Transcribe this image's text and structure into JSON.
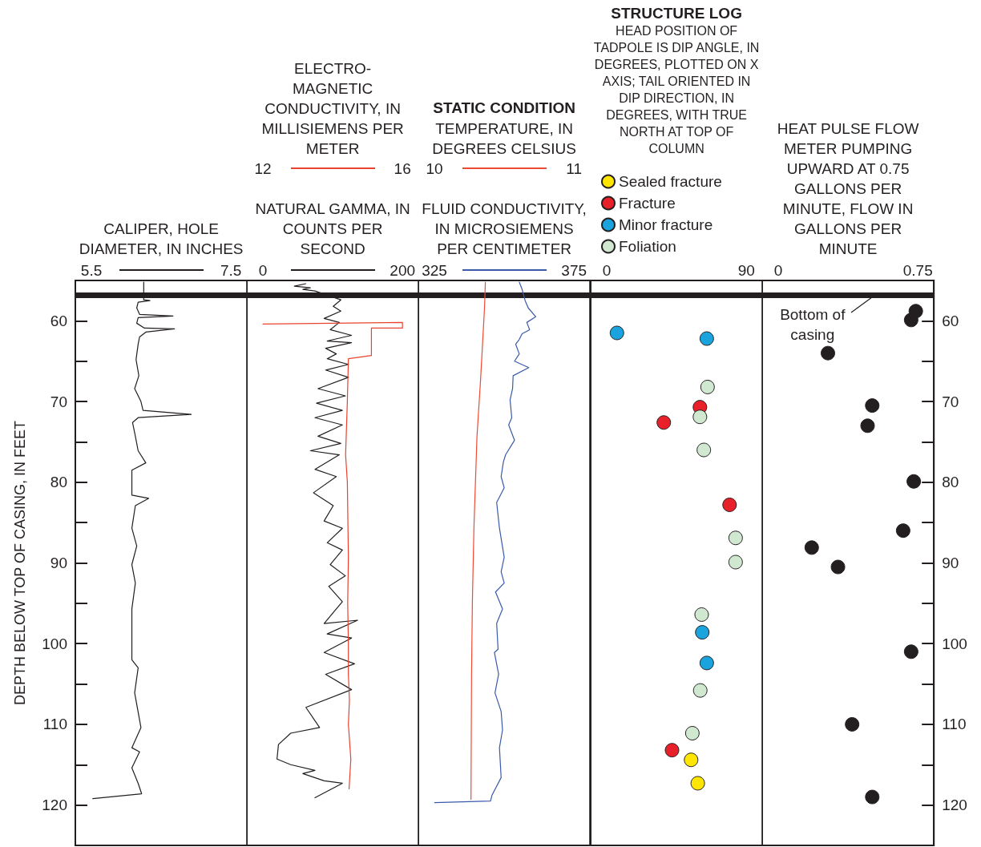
{
  "chart_data": [
    {
      "type": "line",
      "xlabel": "CALIPER, HOLE DIAMETER, IN INCHES",
      "ylabel": "DEPTH BELOW TOP OF CASING, IN FEET",
      "xlim": [
        5.27,
        7.73
      ],
      "xticks": [
        5.5,
        7.5
      ],
      "ylim": [
        125,
        55
      ],
      "yticks": [
        60,
        {
          "value": 65,
          "label": null
        },
        70,
        {
          "value": 75,
          "label": null
        },
        80,
        {
          "value": 85,
          "label": null
        },
        90,
        {
          "value": 95,
          "label": null
        },
        100,
        {
          "value": 105,
          "label": null
        },
        110,
        {
          "value": 115,
          "label": null
        },
        120
      ],
      "grid": false,
      "marker": "none",
      "ref_lines": [
        {
          "axis": "y",
          "value": 56.8,
          "color": "#231f20"
        }
      ],
      "series": [
        {
          "color": "#231f20",
          "x": [
            6.25,
            6.25,
            6.34,
            6.17,
            6.15,
            6.19,
            6.67,
            6.17,
            6.15,
            6.26,
            6.69,
            6.28,
            6.19,
            6.17,
            6.14,
            6.18,
            6.12,
            6.21,
            6.24,
            6.93,
            6.17,
            6.09,
            6.13,
            6.17,
            6.28,
            6.08,
            6.08,
            6.32,
            6.13,
            6.08,
            6.15,
            6.08,
            6.13,
            6.08,
            6.08,
            6.08,
            6.17,
            6.12,
            6.21,
            6.08,
            6.19,
            6.08,
            6.17,
            6.22,
            5.52
          ],
          "values": [
            55.2,
            57.4,
            57.5,
            57.7,
            58.4,
            59.2,
            59.4,
            59.6,
            60.3,
            60.9,
            61.0,
            61.4,
            62.0,
            62.9,
            64.8,
            66.8,
            68.4,
            70.0,
            71.1,
            71.6,
            72.0,
            72.6,
            74.3,
            76.1,
            77.6,
            78.5,
            81.6,
            82.0,
            82.9,
            85.7,
            87.9,
            90.2,
            92.5,
            95.7,
            99.3,
            102.0,
            103.0,
            106.1,
            110.4,
            112.9,
            113.4,
            115.4,
            117.3,
            118.6,
            119.2
          ]
        }
      ]
    },
    {
      "type": "line",
      "x2label": "ELECTRO-MAGNETIC CONDUCTIVITY, IN MILLISIEMENS PER METER",
      "xlabel": "NATURAL GAMMA, IN COUNTS PER SECOND",
      "xlim": [
        -23,
        223
      ],
      "xticks": [
        0,
        200
      ],
      "x2lim": [
        11.54,
        16.46
      ],
      "x2ticks": [
        12,
        16
      ],
      "ylim": [
        125,
        55
      ],
      "tick_labels": "x",
      "grid": false,
      "marker": "none",
      "ref_lines": [
        {
          "axis": "y",
          "value": 56.8,
          "color": "#231f20"
        }
      ],
      "series": [
        {
          "color": "#231f20",
          "x": [
            61.6,
            45.0,
            68.1,
            57.2,
            74.6,
            111.7,
            100.8,
            111.7,
            87.7,
            109.5,
            96.4,
            127.0,
            92.1,
            127.0,
            89.9,
            105.2,
            92.1,
            122.6,
            89.9,
            122.6,
            79.0,
            118.2,
            76.8,
            113.9,
            74.6,
            113.9,
            79.0,
            111.7,
            68.1,
            109.5,
            74.6,
            105.2,
            72.5,
            100.8,
            87.7,
            113.9,
            92.1,
            113.9,
            96.4,
            118.2,
            94.3,
            113.9,
            87.7,
            135.7,
            92.1,
            127.0,
            87.7,
            131.3,
            89.9,
            127.0,
            61.6,
            81.2,
            39.8,
            22.3,
            20.2,
            39.8,
            74.6,
            57.2,
            87.7,
            113.9,
            100.8,
            74.6
          ],
          "values": [
            55.4,
            55.7,
            55.9,
            56.1,
            56.3,
            57.4,
            58.2,
            58.8,
            59.7,
            60.2,
            61.1,
            61.8,
            62.5,
            62.7,
            63.4,
            64.1,
            64.7,
            65.4,
            66.1,
            67.0,
            68.4,
            69.3,
            70.2,
            71.1,
            72.0,
            72.9,
            74.3,
            75.2,
            76.1,
            76.6,
            78.4,
            79.3,
            81.3,
            82.9,
            84.8,
            85.7,
            87.5,
            88.4,
            90.2,
            91.6,
            92.9,
            94.8,
            97.5,
            97.1,
            98.8,
            99.3,
            101.1,
            102.5,
            103.8,
            105.7,
            107.9,
            110.4,
            111.1,
            112.5,
            114.3,
            115.0,
            115.7,
            116.1,
            117.0,
            117.3,
            117.9,
            119.1
          ]
        },
        {
          "color": "#e8432e",
          "axis": "x2",
          "x": [
            12.0,
            16.0,
            16.0,
            15.11,
            15.11,
            14.45,
            14.42,
            14.37,
            14.42,
            14.45,
            14.43,
            14.45,
            14.45,
            14.48,
            14.45,
            14.52,
            14.47
          ],
          "values": [
            60.4,
            60.2,
            60.9,
            60.9,
            64.3,
            64.7,
            70.0,
            76.6,
            80.0,
            89.3,
            95.0,
            100.0,
            103.8,
            107.0,
            110.0,
            114.3,
            118.0
          ]
        }
      ]
    },
    {
      "type": "line",
      "title": "STATIC CONDITION",
      "x2label": "TEMPERATURE, IN DEGREES CELSIUS",
      "xlabel": "FLUID CONDUCTIVITY, IN MICROSIEMENS PER CENTIMETER",
      "xlim": [
        319.26,
        380.74
      ],
      "xticks": [
        325,
        375
      ],
      "x2lim": [
        9.885,
        11.115
      ],
      "x2ticks": [
        10,
        11
      ],
      "ylim": [
        125,
        55
      ],
      "tick_labels": "x",
      "grid": false,
      "marker": "none",
      "ref_lines": [
        {
          "axis": "y",
          "value": 56.8,
          "color": "#231f20"
        }
      ],
      "series": [
        {
          "color": "#ee4b35",
          "axis": "x2",
          "x": [
            10.365,
            10.359,
            10.33,
            10.305,
            10.283,
            10.272,
            10.266,
            10.262
          ],
          "values": [
            55.2,
            58.4,
            67.5,
            74.3,
            85.7,
            94.8,
            103.8,
            119.3
          ]
        },
        {
          "color": "#3a5ba9",
          "x": [
            355.4,
            356.4,
            357.5,
            358.6,
            361.3,
            358.1,
            359.1,
            356.4,
            355.4,
            354.1,
            355.4,
            353.7,
            358.8,
            353.2,
            353.0,
            352.1,
            352.7,
            351.6,
            353.7,
            350.5,
            349.7,
            348.9,
            350.0,
            347.3,
            348.3,
            350.0,
            348.9,
            350.0,
            346.9,
            349.4,
            347.3,
            347.8,
            346.5,
            348.0,
            346.7,
            348.9,
            349.4,
            348.3,
            348.9,
            345.6,
            345.1,
            325.1
          ],
          "values": [
            55.2,
            56.1,
            57.5,
            58.4,
            59.5,
            60.2,
            61.1,
            61.6,
            62.3,
            62.9,
            64.1,
            65.0,
            65.8,
            66.8,
            68.4,
            69.8,
            72.0,
            72.9,
            74.8,
            76.6,
            77.5,
            79.3,
            80.7,
            82.5,
            85.7,
            89.3,
            91.1,
            92.5,
            93.6,
            95.7,
            97.5,
            100.7,
            101.1,
            103.8,
            106.1,
            108.4,
            110.7,
            112.9,
            116.6,
            118.8,
            119.5,
            119.7
          ]
        }
      ]
    },
    {
      "type": "scatter",
      "title": "STRUCTURE LOG",
      "subtitle": "HEAD POSITION OF TADPOLE IS DIP ANGLE, IN DEGREES, PLOTTED ON X AXIS; TAIL ORIENTED IN DIP DIRECTION, IN DEGREES, WITH TRUE NORTH AT TOP OF COLUMN",
      "xlim": [
        -10.33,
        100.33
      ],
      "xticks": [
        0,
        90
      ],
      "ylim": [
        125,
        55
      ],
      "tick_labels": "x",
      "grid": false,
      "marker": "circle",
      "legend": "top left",
      "ref_lines": [
        {
          "axis": "y",
          "value": 56.8,
          "color": "#231f20"
        }
      ],
      "series": [
        {
          "name": "Sealed fracture",
          "color": "#ffe600",
          "x": [
            54.4,
            58.7
          ],
          "values": [
            114.4,
            117.3
          ]
        },
        {
          "name": "Fracture",
          "color": "#e8202a",
          "x": [
            60.1,
            36.8,
            79.2,
            42.1
          ],
          "values": [
            70.7,
            72.6,
            82.8,
            113.2
          ]
        },
        {
          "name": "Minor fracture",
          "color": "#1aa3dc",
          "x": [
            6.6,
            64.5,
            61.6,
            64.5
          ],
          "values": [
            61.5,
            62.2,
            98.6,
            102.4
          ]
        },
        {
          "name": "Foliation",
          "color": "#cfe8cf",
          "x": [
            65.0,
            60.1,
            62.6,
            83.1,
            83.1,
            61.2,
            60.3,
            55.2
          ],
          "values": [
            68.2,
            71.9,
            76.0,
            86.9,
            89.9,
            96.4,
            105.8,
            111.1
          ]
        }
      ]
    },
    {
      "type": "scatter",
      "xlabel": "HEAT PULSE FLOW METER PUMPING UPWARD AT 0.75 GALLONS PER MINUTE, FLOW IN GALLONS PER MINUTE",
      "xlim": [
        -0.086,
        0.836
      ],
      "xticks": [
        0,
        0.75
      ],
      "ylim": [
        125,
        55
      ],
      "yticks": [
        60,
        {
          "value": 65,
          "label": null
        },
        70,
        {
          "value": 75,
          "label": null
        },
        80,
        {
          "value": 85,
          "label": null
        },
        90,
        {
          "value": 95,
          "label": null
        },
        100,
        {
          "value": 105,
          "label": null
        },
        110,
        {
          "value": 115,
          "label": null
        },
        120
      ],
      "grid": false,
      "marker": "circle",
      "ref_lines": [
        {
          "axis": "y",
          "value": 56.8,
          "color": "#231f20"
        }
      ],
      "annotations": [
        {
          "text": "Bottom of casing",
          "x": 0.52,
          "y": 56.8
        }
      ],
      "series": [
        {
          "color": "#231f20",
          "x": [
            0.739,
            0.714,
            0.267,
            0.505,
            0.48,
            0.728,
            0.671,
            0.18,
            0.321,
            0.714,
            0.397,
            0.505
          ],
          "values": [
            58.8,
            59.9,
            64.0,
            70.5,
            73.0,
            79.9,
            86.0,
            88.1,
            90.5,
            101.0,
            110.0,
            119.0
          ]
        }
      ]
    }
  ]
}
